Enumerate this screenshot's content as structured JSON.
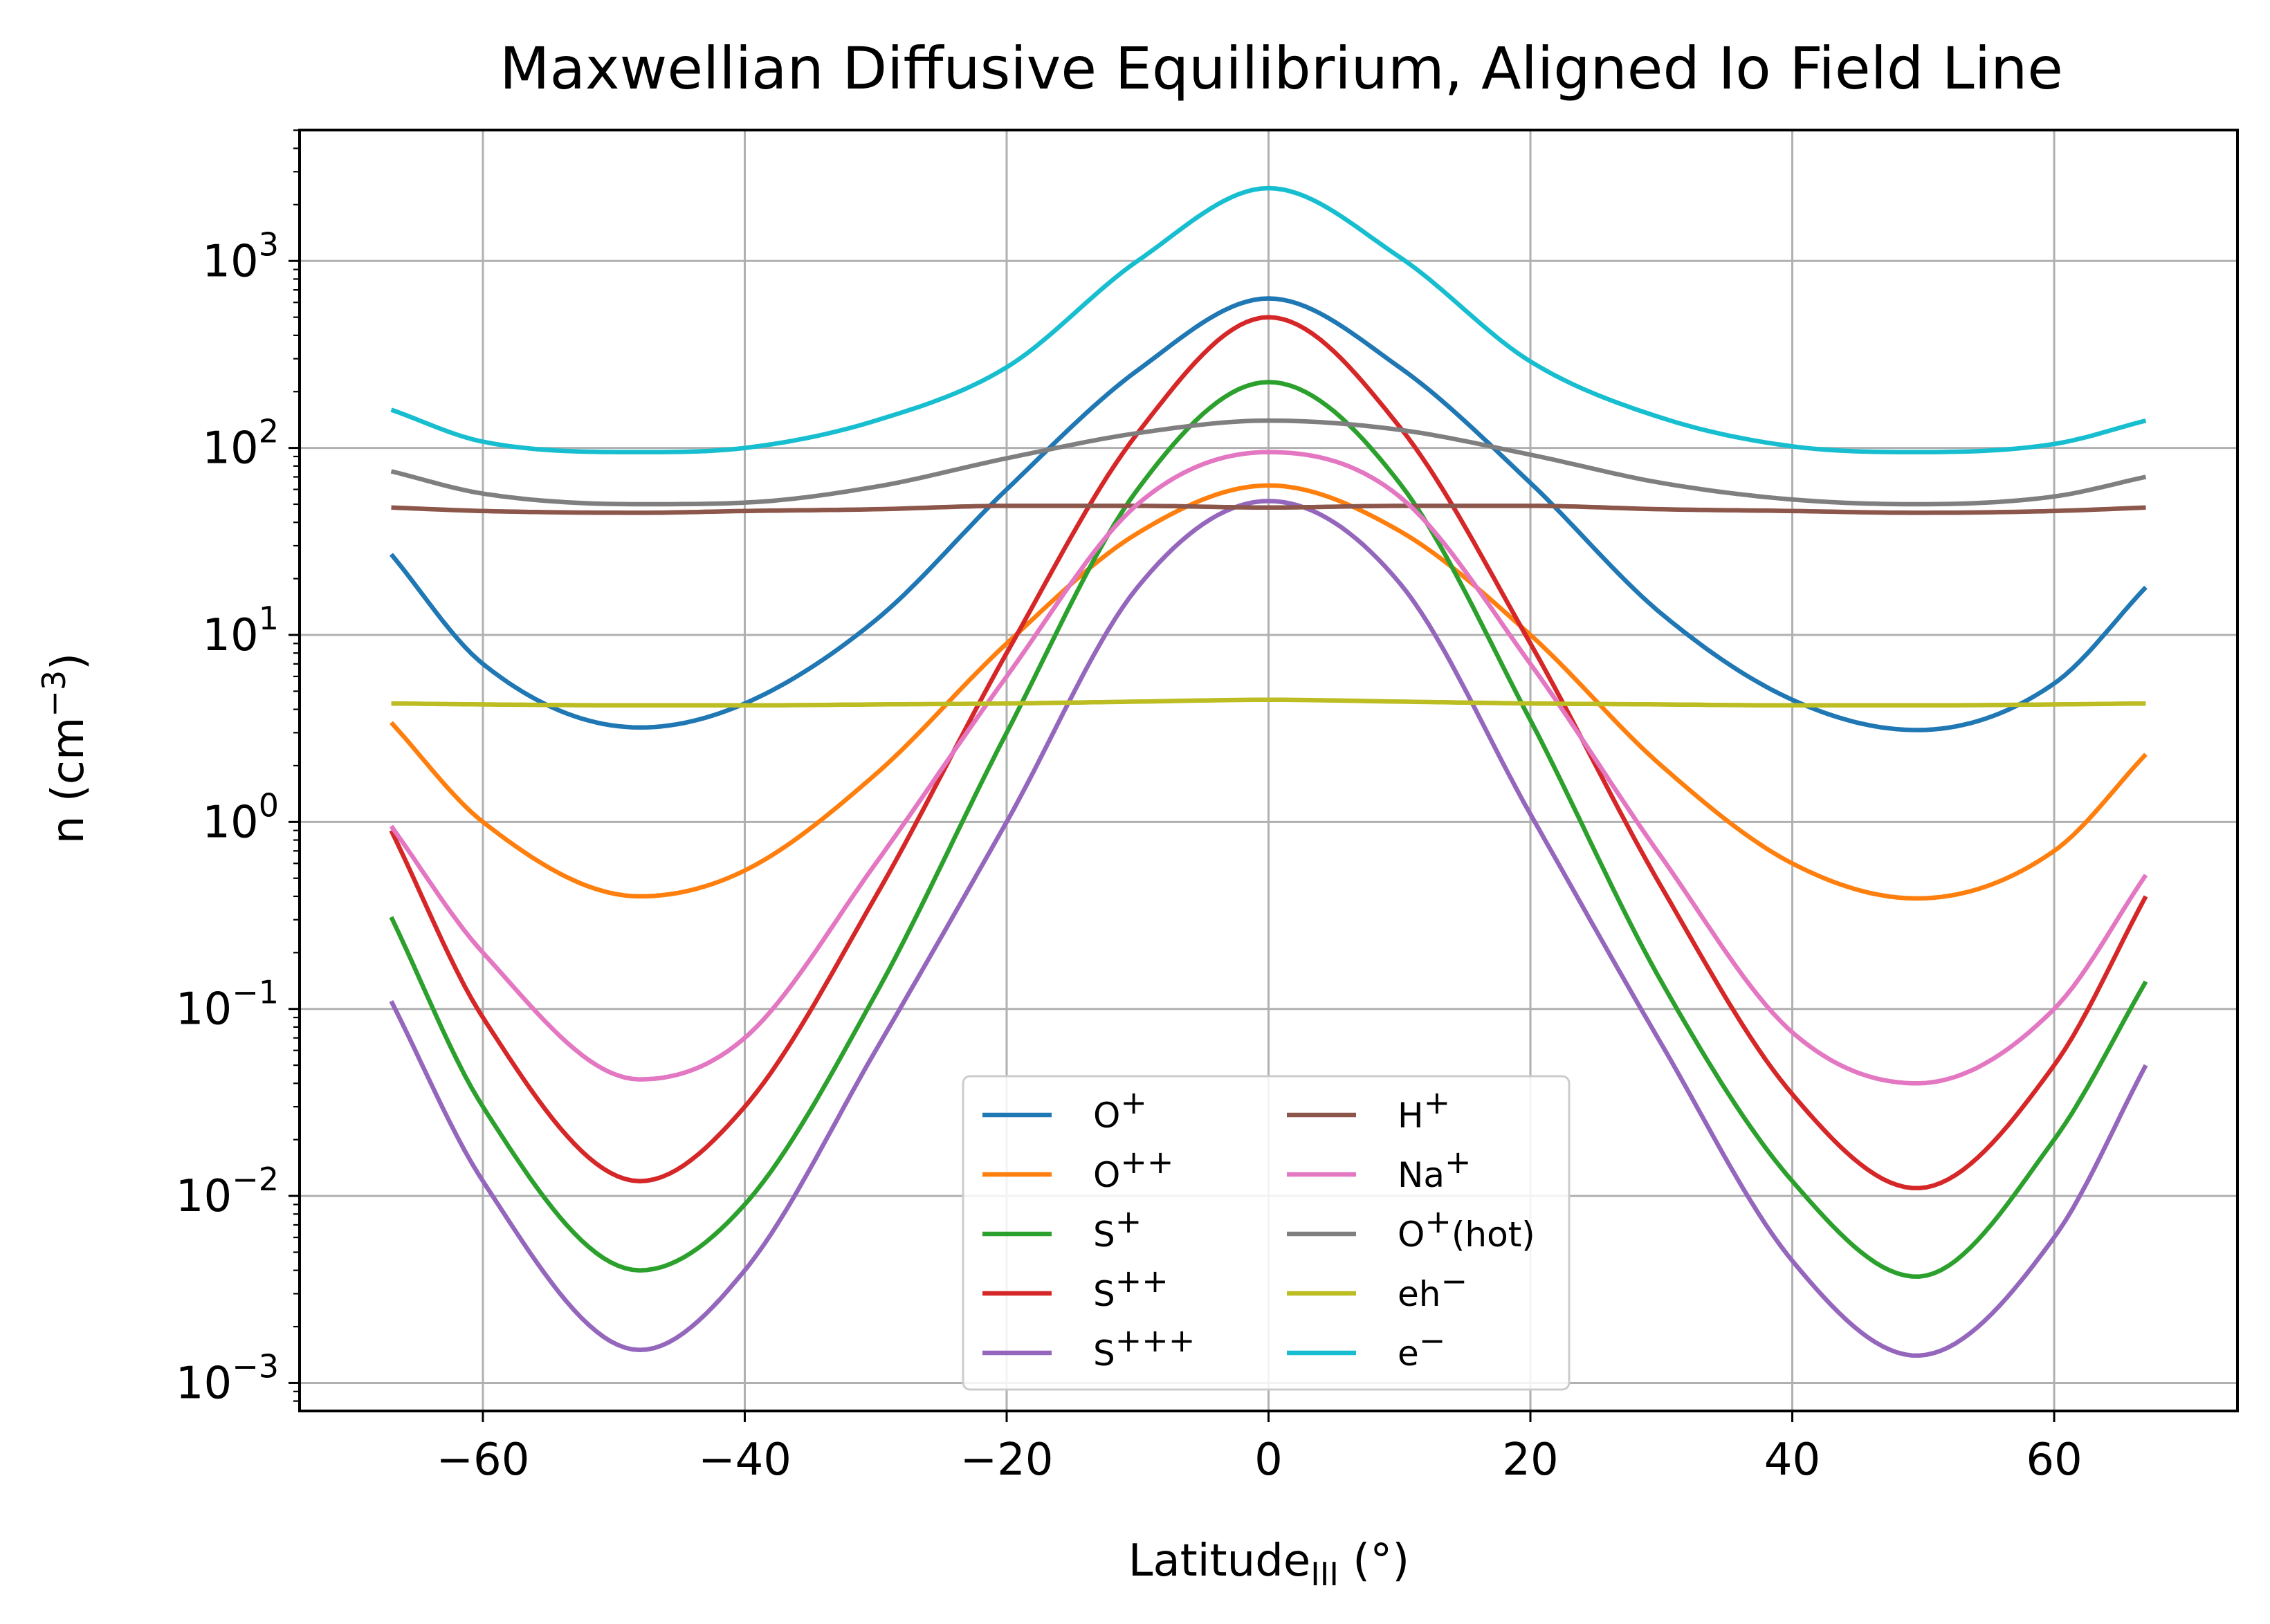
{
  "chart_data": {
    "type": "line",
    "title": "Maxwellian Diffusive Equilibrium, Aligned Io Field Line",
    "xlabel": "Latitude",
    "xlabel_sub": "III",
    "xlabel_unit": " (°)",
    "ylabel": "n (cm",
    "ylabel_sup": "−3",
    "ylabel_close": ")",
    "y_scale": "log",
    "xlim": [
      -74,
      74
    ],
    "ylim_log10": [
      -3.15,
      3.7
    ],
    "grid": true,
    "legend_position": "lower center",
    "x_ticks": [
      -60,
      -40,
      -20,
      0,
      20,
      40,
      60
    ],
    "x_tick_labels": [
      "−60",
      "−40",
      "−20",
      "0",
      "20",
      "40",
      "60"
    ],
    "y_ticks": [
      {
        "exp": -3,
        "base": "10",
        "sup": "−3"
      },
      {
        "exp": -2,
        "base": "10",
        "sup": "−2"
      },
      {
        "exp": -1,
        "base": "10",
        "sup": "−1"
      },
      {
        "exp": 0,
        "base": "10",
        "sup": "0"
      },
      {
        "exp": 1,
        "base": "10",
        "sup": "1"
      },
      {
        "exp": 2,
        "base": "10",
        "sup": "2"
      },
      {
        "exp": 3,
        "base": "10",
        "sup": "3"
      }
    ],
    "x": [
      -67,
      -60,
      -48,
      -40,
      -30,
      -20,
      -10,
      0,
      10,
      20,
      30,
      40,
      49.5,
      60,
      67
    ],
    "series": [
      {
        "name": "O⁺",
        "label_base": "O",
        "label_sup": "+",
        "color": "#1f77b4",
        "values": [
          27,
          7,
          3.2,
          4.3,
          12,
          60,
          260,
          630,
          270,
          65,
          13,
          4.5,
          3.1,
          5.5,
          18
        ]
      },
      {
        "name": "O⁺⁺",
        "label_base": "O",
        "label_sup": "++",
        "color": "#ff7f0e",
        "values": [
          3.4,
          1.0,
          0.4,
          0.55,
          1.8,
          9,
          35,
          63,
          36,
          10,
          2.0,
          0.6,
          0.39,
          0.7,
          2.3
        ]
      },
      {
        "name": "S⁺",
        "label_base": "S",
        "label_sup": "+",
        "color": "#2ca02c",
        "values": [
          0.31,
          0.03,
          0.004,
          0.009,
          0.12,
          3,
          60,
          225,
          65,
          3.5,
          0.14,
          0.012,
          0.0037,
          0.02,
          0.14
        ]
      },
      {
        "name": "S⁺⁺",
        "label_base": "S",
        "label_sup": "++",
        "color": "#d62728",
        "values": [
          0.9,
          0.09,
          0.012,
          0.03,
          0.4,
          8,
          120,
          500,
          130,
          9,
          0.45,
          0.035,
          0.011,
          0.05,
          0.4
        ]
      },
      {
        "name": "S⁺⁺⁺",
        "label_base": "S",
        "label_sup": "+++",
        "color": "#9467bd",
        "values": [
          0.11,
          0.012,
          0.0015,
          0.004,
          0.06,
          1.0,
          18,
          52,
          19,
          1.1,
          0.065,
          0.0045,
          0.0014,
          0.006,
          0.05
        ]
      },
      {
        "name": "H⁺",
        "label_base": "H",
        "label_sup": "+",
        "color": "#8c564b",
        "values": [
          48,
          46,
          45,
          46,
          47,
          49,
          49,
          48,
          49,
          49,
          47,
          46,
          45,
          46,
          48
        ]
      },
      {
        "name": "Na⁺",
        "label_base": "Na",
        "label_sup": "+",
        "color": "#e377c2",
        "values": [
          0.95,
          0.2,
          0.042,
          0.07,
          0.6,
          6,
          50,
          95,
          55,
          7,
          0.65,
          0.075,
          0.04,
          0.1,
          0.52
        ]
      },
      {
        "name": "O⁺(hot)",
        "label_base": "O",
        "label_sup": "+",
        "label_tail": "(hot)",
        "color": "#7f7f7f",
        "values": [
          75,
          57,
          50,
          51,
          62,
          88,
          120,
          140,
          125,
          92,
          65,
          53,
          50,
          55,
          70
        ]
      },
      {
        "name": "eh⁻",
        "label_base": "eh",
        "label_sup": "−",
        "color": "#bcbd22",
        "values": [
          4.3,
          4.25,
          4.2,
          4.2,
          4.25,
          4.3,
          4.4,
          4.5,
          4.4,
          4.3,
          4.25,
          4.2,
          4.2,
          4.25,
          4.3
        ]
      },
      {
        "name": "e⁻",
        "label_base": "e",
        "label_sup": "−",
        "color": "#17becf",
        "values": [
          160,
          108,
          95,
          100,
          140,
          270,
          1000,
          2450,
          1050,
          290,
          145,
          102,
          95,
          105,
          140
        ]
      }
    ]
  }
}
